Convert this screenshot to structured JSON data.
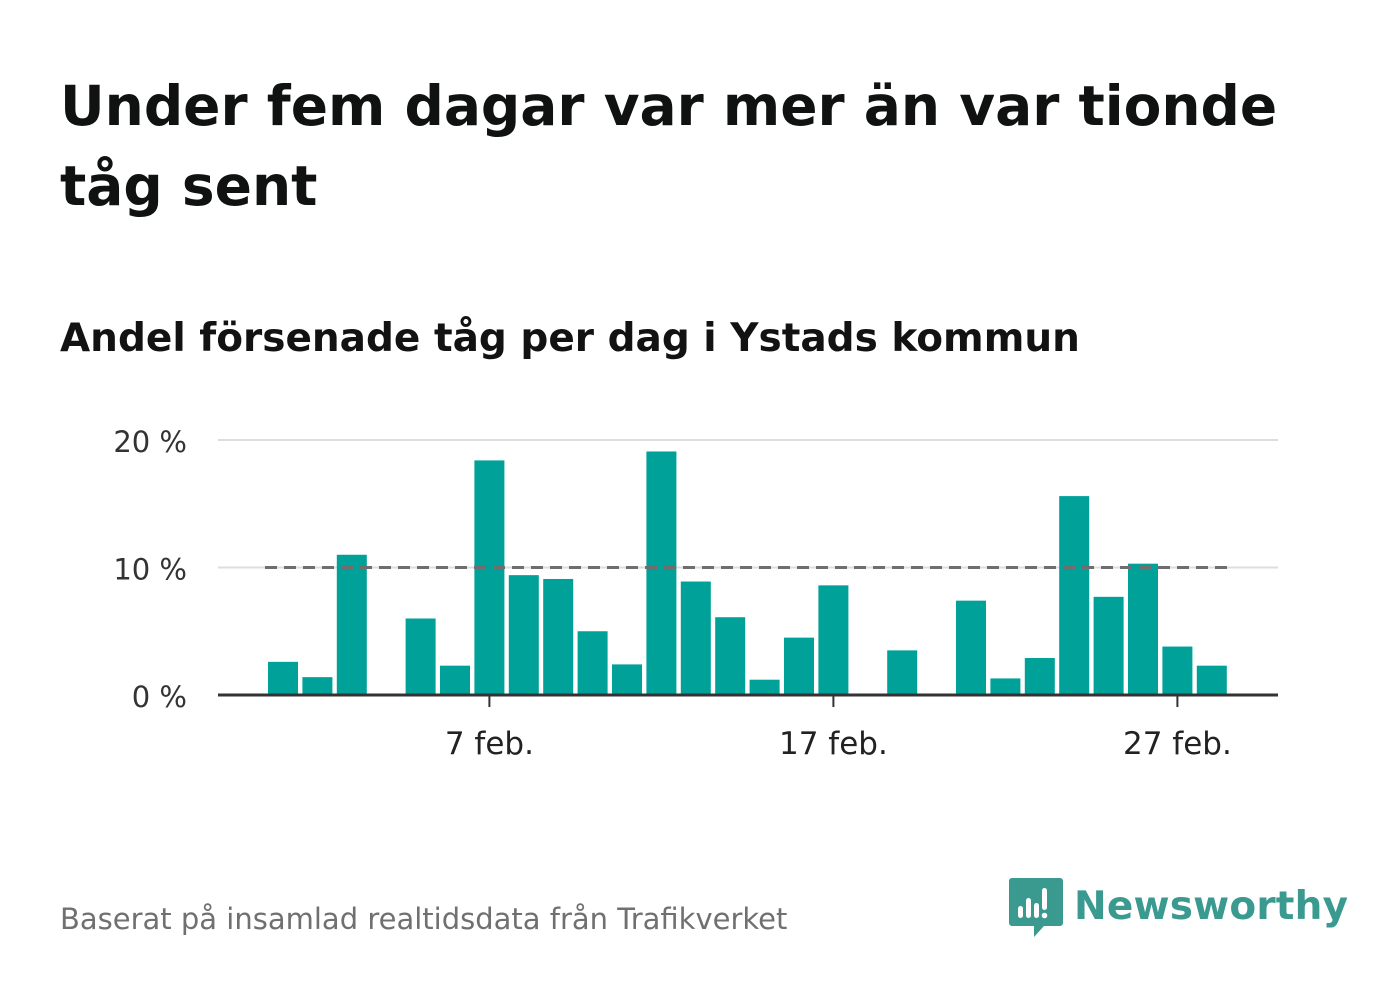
{
  "title": "Under fem dagar var mer än var tionde tåg sent",
  "subtitle": "Andel försenade tåg per dag i Ystads kommun",
  "source": "Baserat på insamlad realtidsdata från Trafikverket",
  "brand": {
    "name": "Newsworthy",
    "logo_icon": "newsworthy-logo-icon",
    "color": "#3a9a90"
  },
  "chart_data": {
    "type": "bar",
    "x": [
      "2023-02-01",
      "2023-02-02",
      "2023-02-03",
      "2023-02-04",
      "2023-02-05",
      "2023-02-06",
      "2023-02-07",
      "2023-02-08",
      "2023-02-09",
      "2023-02-10",
      "2023-02-11",
      "2023-02-12",
      "2023-02-13",
      "2023-02-14",
      "2023-02-15",
      "2023-02-16",
      "2023-02-17",
      "2023-02-18",
      "2023-02-19",
      "2023-02-20",
      "2023-02-21",
      "2023-02-22",
      "2023-02-23",
      "2023-02-24",
      "2023-02-25",
      "2023-02-26",
      "2023-02-27",
      "2023-02-28"
    ],
    "values": [
      2.6,
      1.4,
      11.0,
      0,
      6.0,
      2.3,
      18.4,
      9.4,
      9.1,
      5.0,
      2.4,
      19.1,
      8.9,
      6.1,
      1.2,
      4.5,
      8.6,
      0,
      3.5,
      0,
      7.4,
      1.3,
      2.9,
      15.6,
      7.7,
      10.3,
      3.8,
      2.3
    ],
    "ylim": [
      0,
      20
    ],
    "yticks": [
      0,
      10,
      20
    ],
    "ytick_labels": [
      "0 %",
      "10 %",
      "20 %"
    ],
    "xticks": [
      "2023-02-07",
      "2023-02-17",
      "2023-02-27"
    ],
    "xtick_labels": [
      "7 feb.",
      "17 feb.",
      "27 feb."
    ],
    "reference_line": {
      "value": 10,
      "style": "dashed",
      "color": "#6e6e6e"
    },
    "bar_color": "#00a199",
    "grid": true,
    "xlabel": "",
    "ylabel": ""
  }
}
